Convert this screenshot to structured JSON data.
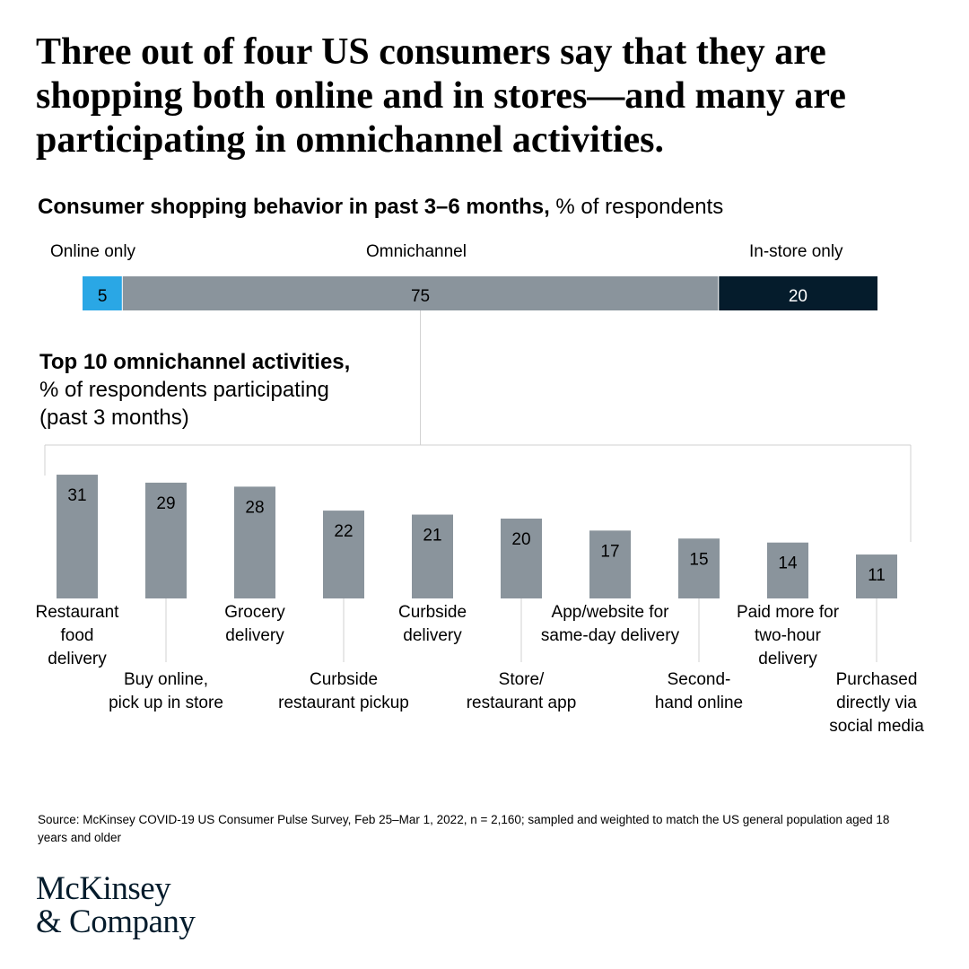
{
  "headline": "Three out of four US consumers say that they are shopping both online and in stores—and many are participating in omnichannel activities.",
  "colors": {
    "online_only": "#2aa7e5",
    "omnichannel": "#8a949c",
    "in_store_only": "#051c2c",
    "activity_bar": "#8a949c",
    "connector": "#d0d0d0"
  },
  "chart_data": [
    {
      "type": "bar",
      "orientation": "horizontal-stacked",
      "title": "Consumer shopping behavior in past 3–6 months,",
      "unit": "% of respondents",
      "series": [
        {
          "name": "Online only",
          "value": 5
        },
        {
          "name": "Omnichannel",
          "value": 75
        },
        {
          "name": "In-store only",
          "value": 20
        }
      ]
    },
    {
      "type": "bar",
      "title": "Top 10 omnichannel activities,",
      "subtitle": "% of respondents participating (past 3 months)",
      "categories": [
        "Restaurant food delivery",
        "Buy online, pick up in store",
        "Grocery delivery",
        "Curbside restaurant pickup",
        "Curbside delivery",
        "Store/ restaurant app",
        "App/website for same-day delivery",
        "Second-hand online",
        "Paid more for two-hour delivery",
        "Purchased directly via social media"
      ],
      "values": [
        31,
        29,
        28,
        22,
        21,
        20,
        17,
        15,
        14,
        11
      ]
    }
  ],
  "labels": {
    "subtitle_bold": "Consumer shopping behavior in past 3–6 months,",
    "subtitle_unit": " % of respondents",
    "seg_online": "Online only",
    "seg_omni": "Omnichannel",
    "seg_instore": "In-store only",
    "sub_title_bold": "Top 10 omnichannel activities,",
    "sub_title_line2": "% of respondents participating",
    "sub_title_line3": "(past 3 months)",
    "cat_display": [
      "Restaurant\nfood\ndelivery",
      "Buy online,\npick up in store",
      "Grocery\ndelivery",
      "Curbside\nrestaurant pickup",
      "Curbside\ndelivery",
      "Store/\nrestaurant app",
      "App/website for\nsame-day delivery",
      "Second-\nhand online",
      "Paid more for\ntwo-hour\ndelivery",
      "Purchased\ndirectly via\nsocial media"
    ]
  },
  "source": "Source: McKinsey COVID-19 US Consumer Pulse Survey, Feb 25–Mar 1, 2022, n = 2,160; sampled and weighted to match the US general population aged 18 years and older",
  "logo": {
    "line1": "McKinsey",
    "line2": "& Company"
  }
}
